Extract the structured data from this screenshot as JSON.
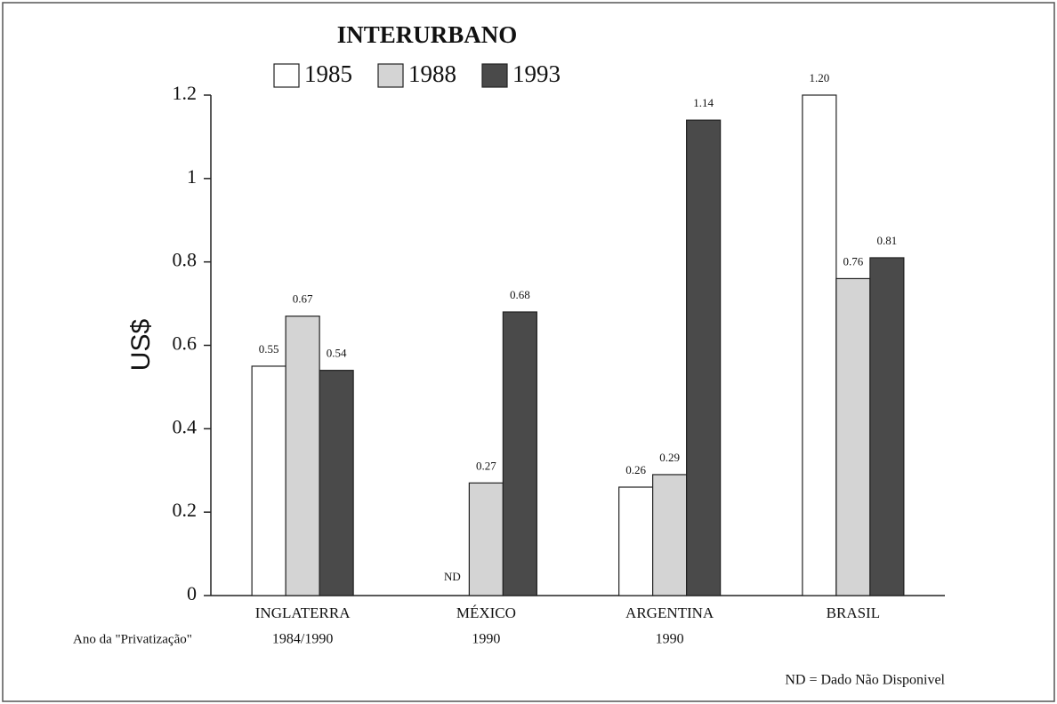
{
  "chart_data": {
    "type": "bar",
    "title": "INTERURBANO",
    "y_label": "US$",
    "categories": [
      "INGLATERRA",
      "MÉXICO",
      "ARGENTINA",
      "BRASIL"
    ],
    "series": [
      {
        "name": "1985",
        "color": "#ffffff",
        "values": [
          0.55,
          null,
          0.26,
          1.2
        ],
        "value_labels": [
          "0.55",
          "ND",
          "0.26",
          "1.20"
        ]
      },
      {
        "name": "1988",
        "color": "#d4d4d4",
        "values": [
          0.67,
          0.27,
          0.29,
          0.76
        ],
        "value_labels": [
          "0.67",
          "0.27",
          "0.29",
          "0.76"
        ]
      },
      {
        "name": "1993",
        "color": "#4a4a4a",
        "values": [
          0.54,
          0.68,
          1.14,
          0.81
        ],
        "value_labels": [
          "0.54",
          "0.68",
          "1.14",
          "0.81"
        ]
      }
    ],
    "ylim": [
      0,
      1.2
    ],
    "yticks": [
      0,
      0.2,
      0.4,
      0.6,
      0.8,
      1,
      1.2
    ],
    "privatization_label": "Ano da \"Privatização\"",
    "privatization_years": [
      "1984/1990",
      "1990",
      "1990",
      null
    ],
    "note": "ND = Dado Não Disponivel"
  }
}
